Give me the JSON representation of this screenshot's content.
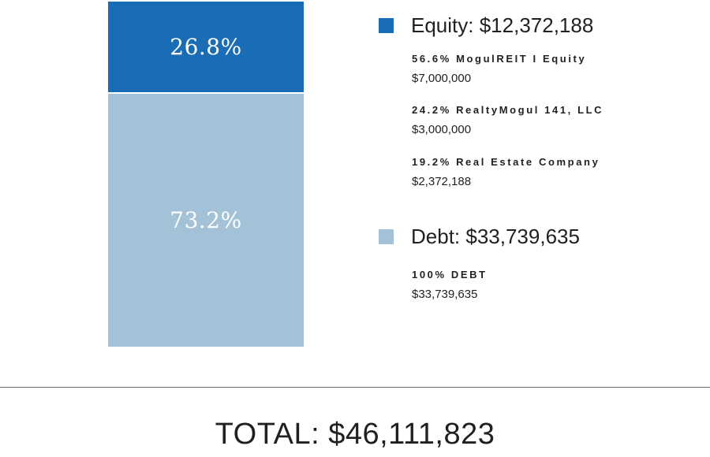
{
  "chart_data": {
    "type": "bar",
    "stacked": true,
    "categories": [
      ""
    ],
    "series": [
      {
        "name": "Equity: $12,372,188",
        "value": 26.8,
        "label": "26.8%",
        "color": "#1a6db5"
      },
      {
        "name": "Debt: $33,739,635",
        "value": 73.2,
        "label": "73.2%",
        "color": "#a3c2d7"
      }
    ],
    "legend": {
      "placement": "right",
      "groups": [
        {
          "title": "Equity: $12,372,188",
          "color": "#1a6db5",
          "items": [
            {
              "name": "56.6% MogulREIT I Equity",
              "amount": "$7,000,000"
            },
            {
              "name": "24.2% RealtyMogul 141, LLC",
              "amount": "$3,000,000"
            },
            {
              "name": "19.2% Real Estate Company",
              "amount": "$2,372,188"
            }
          ]
        },
        {
          "title": "Debt: $33,739,635",
          "color": "#a3c2d7",
          "items": [
            {
              "name": "100% DEBT",
              "amount": "$33,739,635"
            }
          ]
        }
      ]
    },
    "total": "TOTAL: $46,111,823",
    "title": "",
    "xlabel": "",
    "ylabel": "",
    "ylim": [
      0,
      100
    ],
    "grid": false
  }
}
